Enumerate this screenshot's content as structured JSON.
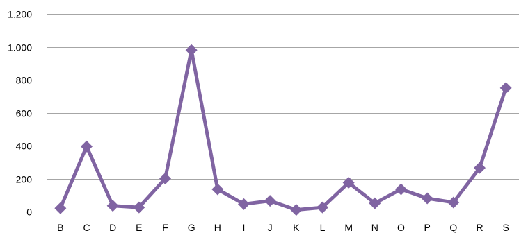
{
  "chart_data": {
    "type": "line",
    "categories": [
      "B",
      "C",
      "D",
      "E",
      "F",
      "G",
      "H",
      "I",
      "J",
      "K",
      "L",
      "M",
      "N",
      "O",
      "P",
      "Q",
      "R",
      "S"
    ],
    "series": [
      {
        "values": [
          20,
          395,
          35,
          25,
          200,
          980,
          135,
          45,
          65,
          10,
          25,
          175,
          50,
          135,
          80,
          55,
          265,
          750
        ]
      }
    ],
    "y_ticks": [
      0,
      200,
      400,
      600,
      800,
      1000,
      1200
    ],
    "y_tick_labels": [
      "0",
      "200",
      "400",
      "600",
      "800",
      "1.000",
      "1.200"
    ],
    "ylim": [
      0,
      1200
    ],
    "grid": true,
    "legend": "none",
    "title": "",
    "xlabel": "",
    "ylabel": "",
    "colors": {
      "line": "#8064a2",
      "grid": "#a6a6a6"
    },
    "marker": "diamond"
  }
}
